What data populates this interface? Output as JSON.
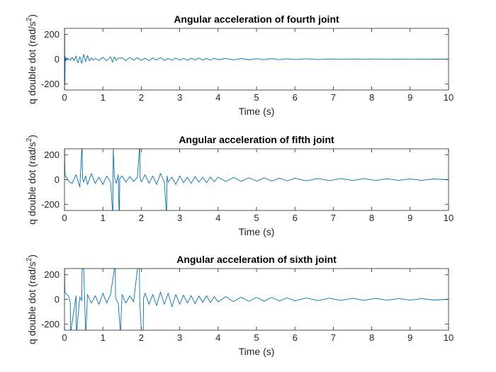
{
  "figure": {
    "line_color": "#0072BD"
  },
  "chart_data": [
    {
      "type": "line",
      "title": "Angular acceleration of fourth joint",
      "xlabel": "Time (s)",
      "ylabel": "q double dot (rad/s",
      "ylabel_sup": "2",
      "ylabel_close": ")",
      "xlim": [
        0,
        10
      ],
      "ylim": [
        -250,
        250
      ],
      "xticks": [
        0,
        1,
        2,
        3,
        4,
        5,
        6,
        7,
        8,
        9,
        10
      ],
      "yticks": [
        -200,
        0,
        200
      ],
      "grid": false,
      "series": [
        {
          "x": [
            0,
            0.005,
            0.01,
            0.02,
            0.03,
            0.05,
            0.08,
            0.1,
            0.15,
            0.2,
            0.25,
            0.3,
            0.35,
            0.4,
            0.45,
            0.5,
            0.55,
            0.6,
            0.65,
            0.7,
            0.75,
            0.8,
            0.9,
            1.0,
            1.1,
            1.2,
            1.25,
            1.3,
            1.35,
            1.4,
            1.5,
            1.6,
            1.7,
            1.8,
            1.9,
            2.0,
            2.1,
            2.2,
            2.3,
            2.4,
            2.5,
            2.6,
            2.7,
            2.8,
            2.9,
            3.0,
            3.1,
            3.2,
            3.3,
            3.4,
            3.5,
            3.6,
            3.7,
            3.8,
            3.9,
            4.0,
            4.2,
            4.4,
            4.6,
            4.8,
            5.0,
            5.2,
            5.4,
            5.6,
            5.8,
            6.0,
            6.3,
            6.6,
            6.9,
            7.2,
            7.5,
            7.8,
            8.1,
            8.4,
            8.7,
            9.0,
            9.3,
            9.6,
            10.0
          ],
          "y": [
            230,
            180,
            -210,
            20,
            -15,
            10,
            -5,
            8,
            -10,
            15,
            -12,
            25,
            -30,
            20,
            -35,
            40,
            -20,
            30,
            -15,
            10,
            -8,
            5,
            -10,
            15,
            -12,
            20,
            -25,
            18,
            -10,
            8,
            10,
            -12,
            14,
            -8,
            12,
            -10,
            8,
            -12,
            10,
            -8,
            14,
            -10,
            6,
            -8,
            10,
            -8,
            7,
            -9,
            8,
            -6,
            9,
            -7,
            6,
            -8,
            7,
            -5,
            6,
            -6,
            5,
            -5,
            4,
            -4,
            5,
            -4,
            3,
            -3,
            3,
            -3,
            2,
            -2,
            2,
            -2,
            2,
            -1,
            1,
            -1,
            1,
            0,
            0
          ]
        }
      ]
    },
    {
      "type": "line",
      "title": "Angular acceleration of fifth joint",
      "xlabel": "Time (s)",
      "ylabel": "q double dot (rad/s",
      "ylabel_sup": "2",
      "ylabel_close": ")",
      "xlim": [
        0,
        10
      ],
      "ylim": [
        -250,
        250
      ],
      "xticks": [
        0,
        1,
        2,
        3,
        4,
        5,
        6,
        7,
        8,
        9,
        10
      ],
      "yticks": [
        -200,
        0,
        200
      ],
      "grid": false,
      "series": [
        {
          "x": [
            0,
            0.01,
            0.02,
            0.05,
            0.1,
            0.2,
            0.3,
            0.4,
            0.45,
            0.46,
            0.47,
            0.5,
            0.55,
            0.6,
            0.7,
            0.8,
            0.9,
            1.0,
            1.1,
            1.2,
            1.25,
            1.26,
            1.27,
            1.3,
            1.35,
            1.4,
            1.42,
            1.43,
            1.44,
            1.5,
            1.6,
            1.7,
            1.8,
            1.9,
            1.95,
            1.96,
            1.97,
            2.0,
            2.1,
            2.2,
            2.3,
            2.4,
            2.5,
            2.6,
            2.65,
            2.66,
            2.67,
            2.7,
            2.8,
            2.9,
            3.0,
            3.1,
            3.2,
            3.3,
            3.4,
            3.5,
            3.6,
            3.7,
            3.8,
            3.9,
            4.0,
            4.2,
            4.4,
            4.6,
            4.8,
            5.0,
            5.2,
            5.4,
            5.6,
            5.8,
            6.0,
            6.3,
            6.6,
            6.9,
            7.2,
            7.5,
            7.8,
            8.1,
            8.4,
            8.7,
            9.0,
            9.3,
            9.6,
            10.0
          ],
          "y": [
            250,
            80,
            30,
            20,
            -10,
            -30,
            40,
            -60,
            250,
            250,
            10,
            -20,
            30,
            -40,
            50,
            -30,
            20,
            -40,
            30,
            -20,
            -250,
            -250,
            250,
            20,
            -30,
            40,
            -250,
            -250,
            10,
            30,
            -20,
            25,
            -15,
            20,
            250,
            250,
            10,
            -20,
            40,
            -30,
            30,
            -40,
            50,
            -20,
            -250,
            -250,
            30,
            -20,
            20,
            -40,
            30,
            -25,
            20,
            -30,
            25,
            -20,
            20,
            -25,
            22,
            -18,
            20,
            -15,
            18,
            -14,
            15,
            -12,
            14,
            -12,
            12,
            -10,
            11,
            -10,
            9,
            -8,
            9,
            -7,
            8,
            -7,
            7,
            -6,
            6,
            -6,
            5,
            0
          ]
        }
      ]
    },
    {
      "type": "line",
      "title": "Angular acceleration of sixth joint",
      "xlabel": "Time (s)",
      "ylabel": "q double dot (rad/s",
      "ylabel_sup": "2",
      "ylabel_close": ")",
      "xlim": [
        0,
        10
      ],
      "ylim": [
        -250,
        250
      ],
      "xticks": [
        0,
        1,
        2,
        3,
        4,
        5,
        6,
        7,
        8,
        9,
        10
      ],
      "yticks": [
        -200,
        0,
        200
      ],
      "grid": false,
      "series": [
        {
          "x": [
            0,
            0.01,
            0.05,
            0.1,
            0.15,
            0.16,
            0.17,
            0.3,
            0.31,
            0.32,
            0.4,
            0.45,
            0.46,
            0.5,
            0.55,
            0.56,
            0.6,
            0.7,
            0.8,
            0.9,
            1.0,
            1.1,
            1.2,
            1.3,
            1.32,
            1.33,
            1.4,
            1.45,
            1.46,
            1.5,
            1.6,
            1.7,
            1.8,
            1.9,
            1.95,
            1.96,
            2.0,
            2.05,
            2.06,
            2.1,
            2.2,
            2.3,
            2.4,
            2.5,
            2.6,
            2.7,
            2.8,
            2.9,
            3.0,
            3.1,
            3.2,
            3.3,
            3.4,
            3.5,
            3.6,
            3.7,
            3.8,
            3.9,
            4.0,
            4.2,
            4.4,
            4.6,
            4.8,
            5.0,
            5.2,
            5.4,
            5.6,
            5.8,
            6.0,
            6.3,
            6.6,
            6.9,
            7.2,
            7.5,
            7.8,
            8.1,
            8.4,
            8.7,
            9.0,
            9.3,
            9.6,
            10.0
          ],
          "y": [
            250,
            60,
            40,
            30,
            -20,
            -250,
            -250,
            30,
            -250,
            -250,
            20,
            -10,
            250,
            250,
            -250,
            -250,
            40,
            -30,
            30,
            -40,
            50,
            -30,
            40,
            250,
            250,
            10,
            -30,
            -250,
            -250,
            40,
            -30,
            30,
            -20,
            250,
            250,
            -10,
            -250,
            -250,
            10,
            50,
            -40,
            40,
            -50,
            60,
            -40,
            50,
            -60,
            40,
            -40,
            35,
            -30,
            30,
            -35,
            28,
            -25,
            30,
            -25,
            22,
            -20,
            22,
            -18,
            18,
            -16,
            16,
            -14,
            15,
            -13,
            13,
            -12,
            11,
            -10,
            10,
            -9,
            9,
            -8,
            8,
            -7,
            7,
            -6,
            6,
            -5,
            0
          ]
        }
      ]
    }
  ]
}
